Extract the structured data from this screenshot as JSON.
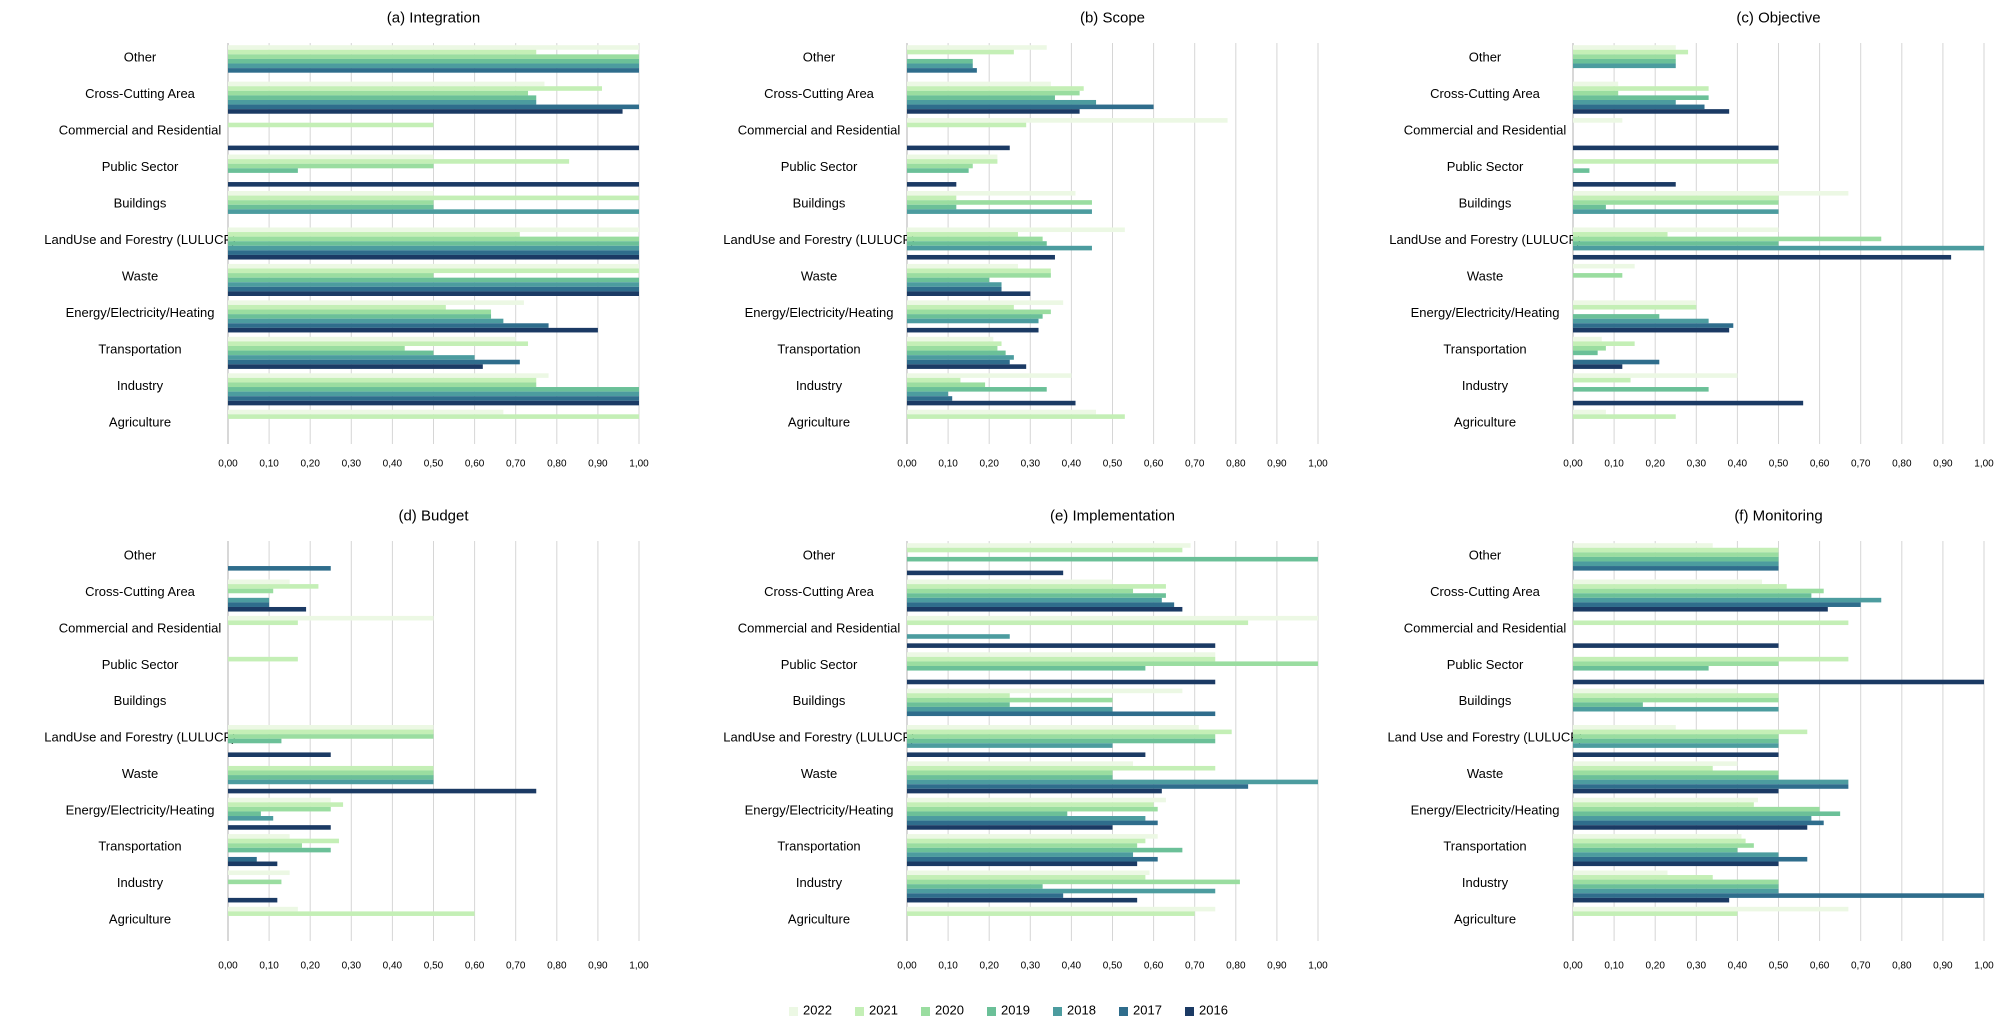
{
  "colors": {
    "series": [
      "#ecf8e4",
      "#c4efb6",
      "#9adda0",
      "#6bc098",
      "#4c9c9f",
      "#2f6d8c",
      "#1b3a64"
    ],
    "grid": "#d6d6d6",
    "axis": "#bfbfbf",
    "text": "#000000"
  },
  "legend": {
    "position": "bottom",
    "entries": [
      "2022",
      "2021",
      "2020",
      "2019",
      "2018",
      "2017",
      "2016"
    ]
  },
  "chart_data": [
    {
      "type": "bar",
      "orientation": "horizontal",
      "title": "(a) Integration",
      "categories": [
        "Other",
        "Cross-Cutting Area",
        "Commercial and Residential",
        "Public Sector",
        "Buildings",
        "LandUse and Forestry (LULUCF)",
        "Waste",
        "Energy/Electricity/Heating",
        "Transportation",
        "Industry",
        "Agriculture"
      ],
      "series": [
        {
          "name": "2022",
          "values": [
            1.0,
            0.77,
            0.0,
            0.5,
            0.5,
            1.0,
            1.0,
            0.72,
            0.7,
            0.78,
            0.67
          ]
        },
        {
          "name": "2021",
          "values": [
            0.75,
            0.91,
            0.5,
            0.83,
            1.0,
            0.71,
            1.0,
            0.53,
            0.73,
            0.75,
            1.0
          ]
        },
        {
          "name": "2020",
          "values": [
            1.0,
            0.73,
            0.0,
            0.5,
            0.5,
            1.0,
            0.5,
            0.64,
            0.43,
            0.75,
            0.0
          ]
        },
        {
          "name": "2019",
          "values": [
            1.0,
            0.75,
            0.0,
            0.17,
            0.5,
            1.0,
            1.0,
            0.64,
            0.5,
            1.0,
            0.0
          ]
        },
        {
          "name": "2018",
          "values": [
            1.0,
            0.75,
            0.0,
            0.0,
            1.0,
            1.0,
            1.0,
            0.67,
            0.6,
            1.0,
            0.0
          ]
        },
        {
          "name": "2017",
          "values": [
            1.0,
            1.0,
            0.0,
            0.0,
            0.0,
            1.0,
            1.0,
            0.78,
            0.71,
            1.0,
            0.0
          ]
        },
        {
          "name": "2016",
          "values": [
            0.0,
            0.96,
            1.0,
            1.0,
            0.0,
            1.0,
            1.0,
            0.9,
            0.62,
            1.0,
            0.0
          ]
        }
      ],
      "xlim": [
        0,
        1
      ],
      "xticks": [
        "0,00",
        "0,10",
        "0,20",
        "0,30",
        "0,40",
        "0,50",
        "0,60",
        "0,70",
        "0,80",
        "0,90",
        "1,00"
      ]
    },
    {
      "type": "bar",
      "orientation": "horizontal",
      "title": "(b) Scope",
      "categories": [
        "Other",
        "Cross-Cutting Area",
        "Commercial and Residential",
        "Public Sector",
        "Buildings",
        "LandUse and Forestry (LULUCF)",
        "Waste",
        "Energy/Electricity/Heating",
        "Transportation",
        "Industry",
        "Agriculture"
      ],
      "series": [
        {
          "name": "2022",
          "values": [
            0.34,
            0.35,
            0.78,
            0.22,
            0.41,
            0.53,
            0.27,
            0.38,
            0.21,
            0.4,
            0.46
          ]
        },
        {
          "name": "2021",
          "values": [
            0.26,
            0.43,
            0.29,
            0.22,
            0.12,
            0.27,
            0.35,
            0.26,
            0.23,
            0.13,
            0.53
          ]
        },
        {
          "name": "2020",
          "values": [
            0.0,
            0.42,
            0.0,
            0.16,
            0.45,
            0.33,
            0.35,
            0.35,
            0.22,
            0.19,
            0.0
          ]
        },
        {
          "name": "2019",
          "values": [
            0.16,
            0.36,
            0.0,
            0.15,
            0.12,
            0.34,
            0.2,
            0.33,
            0.24,
            0.34,
            0.0
          ]
        },
        {
          "name": "2018",
          "values": [
            0.16,
            0.46,
            0.0,
            0.0,
            0.45,
            0.45,
            0.23,
            0.32,
            0.26,
            0.1,
            0.0
          ]
        },
        {
          "name": "2017",
          "values": [
            0.17,
            0.6,
            0.0,
            0.0,
            0.0,
            0.0,
            0.23,
            0.0,
            0.25,
            0.11,
            0.0
          ]
        },
        {
          "name": "2016",
          "values": [
            0.0,
            0.42,
            0.25,
            0.12,
            0.0,
            0.36,
            0.3,
            0.32,
            0.29,
            0.41,
            0.0
          ]
        }
      ],
      "xlim": [
        0,
        1
      ],
      "xticks": [
        "0,00",
        "0,10",
        "0,20",
        "0,30",
        "0,40",
        "0,50",
        "0,60",
        "0,70",
        "0,80",
        "0,90",
        "1,00"
      ]
    },
    {
      "type": "bar",
      "orientation": "horizontal",
      "title": "(c) Objective",
      "categories": [
        "Other",
        "Cross-Cutting Area",
        "Commercial and Residential",
        "Public Sector",
        "Buildings",
        "LandUse and Forestry (LULUCF)",
        "Waste",
        "Energy/Electricity/Heating",
        "Transportation",
        "Industry",
        "Agriculture"
      ],
      "series": [
        {
          "name": "2022",
          "values": [
            0.25,
            0.11,
            0.12,
            0.0,
            0.67,
            0.5,
            0.15,
            0.3,
            0.07,
            0.4,
            0.08
          ]
        },
        {
          "name": "2021",
          "values": [
            0.28,
            0.33,
            0.0,
            0.5,
            0.5,
            0.23,
            0.0,
            0.3,
            0.15,
            0.14,
            0.25
          ]
        },
        {
          "name": "2020",
          "values": [
            0.25,
            0.11,
            0.0,
            0.0,
            0.5,
            0.75,
            0.12,
            0.0,
            0.08,
            0.0,
            0.0
          ]
        },
        {
          "name": "2019",
          "values": [
            0.25,
            0.33,
            0.0,
            0.04,
            0.08,
            0.5,
            0.0,
            0.21,
            0.06,
            0.33,
            0.0
          ]
        },
        {
          "name": "2018",
          "values": [
            0.25,
            0.25,
            0.0,
            0.0,
            0.5,
            1.0,
            0.0,
            0.33,
            0.0,
            0.0,
            0.0
          ]
        },
        {
          "name": "2017",
          "values": [
            0.0,
            0.32,
            0.0,
            0.0,
            0.0,
            0.0,
            0.0,
            0.39,
            0.21,
            0.0,
            0.0
          ]
        },
        {
          "name": "2016",
          "values": [
            0.0,
            0.38,
            0.5,
            0.25,
            0.0,
            0.92,
            0.0,
            0.38,
            0.12,
            0.56,
            0.0
          ]
        }
      ],
      "xlim": [
        0,
        1
      ],
      "xticks": [
        "0,00",
        "0,10",
        "0,20",
        "0,30",
        "0,40",
        "0,50",
        "0,60",
        "0,70",
        "0,80",
        "0,90",
        "1,00"
      ]
    },
    {
      "type": "bar",
      "orientation": "horizontal",
      "title": "(d) Budget",
      "categories": [
        "Other",
        "Cross-Cutting Area",
        "Commercial and Residential",
        "Public Sector",
        "Buildings",
        "LandUse and Forestry (LULUCF)",
        "Waste",
        "Energy/Electricity/Heating",
        "Transportation",
        "Industry",
        "Agriculture"
      ],
      "series": [
        {
          "name": "2022",
          "values": [
            0.0,
            0.15,
            0.5,
            0.0,
            0.0,
            0.5,
            0.0,
            0.25,
            0.15,
            0.15,
            0.17
          ]
        },
        {
          "name": "2021",
          "values": [
            0.0,
            0.22,
            0.17,
            0.17,
            0.0,
            0.5,
            0.5,
            0.28,
            0.27,
            0.0,
            0.6
          ]
        },
        {
          "name": "2020",
          "values": [
            0.0,
            0.11,
            0.0,
            0.0,
            0.0,
            0.5,
            0.5,
            0.25,
            0.18,
            0.13,
            0.0
          ]
        },
        {
          "name": "2019",
          "values": [
            0.0,
            0.0,
            0.0,
            0.0,
            0.0,
            0.13,
            0.5,
            0.08,
            0.25,
            0.0,
            0.0
          ]
        },
        {
          "name": "2018",
          "values": [
            0.0,
            0.1,
            0.0,
            0.0,
            0.0,
            0.0,
            0.5,
            0.11,
            0.0,
            0.0,
            0.0
          ]
        },
        {
          "name": "2017",
          "values": [
            0.25,
            0.1,
            0.0,
            0.0,
            0.0,
            0.0,
            0.0,
            0.0,
            0.07,
            0.0,
            0.0
          ]
        },
        {
          "name": "2016",
          "values": [
            0.0,
            0.19,
            0.0,
            0.0,
            0.0,
            0.25,
            0.75,
            0.25,
            0.12,
            0.12,
            0.0
          ]
        }
      ],
      "xlim": [
        0,
        1
      ],
      "xticks": [
        "0,00",
        "0,10",
        "0,20",
        "0,30",
        "0,40",
        "0,50",
        "0,60",
        "0,70",
        "0,80",
        "0,90",
        "1,00"
      ]
    },
    {
      "type": "bar",
      "orientation": "horizontal",
      "title": "(e) Implementation",
      "categories": [
        "Other",
        "Cross-Cutting Area",
        "Commercial and Residential",
        "Public Sector",
        "Buildings",
        "LandUse and Forestry (LULUCF)",
        "Waste",
        "Energy/Electricity/Heating",
        "Transportation",
        "Industry",
        "Agriculture"
      ],
      "series": [
        {
          "name": "2022",
          "values": [
            0.69,
            0.5,
            1.0,
            0.75,
            0.67,
            0.71,
            0.55,
            0.63,
            0.61,
            0.59,
            0.75
          ]
        },
        {
          "name": "2021",
          "values": [
            0.67,
            0.63,
            0.83,
            0.75,
            0.25,
            0.79,
            0.75,
            0.6,
            0.58,
            0.58,
            0.7
          ]
        },
        {
          "name": "2020",
          "values": [
            0.0,
            0.55,
            0.0,
            1.0,
            0.5,
            0.75,
            0.5,
            0.61,
            0.56,
            0.81,
            0.0
          ]
        },
        {
          "name": "2019",
          "values": [
            1.0,
            0.63,
            0.0,
            0.58,
            0.25,
            0.75,
            0.5,
            0.39,
            0.67,
            0.33,
            0.0
          ]
        },
        {
          "name": "2018",
          "values": [
            0.0,
            0.62,
            0.25,
            0.0,
            0.5,
            0.5,
            1.0,
            0.58,
            0.55,
            0.75,
            0.0
          ]
        },
        {
          "name": "2017",
          "values": [
            0.0,
            0.65,
            0.0,
            0.0,
            0.75,
            0.0,
            0.83,
            0.61,
            0.61,
            0.38,
            0.0
          ]
        },
        {
          "name": "2016",
          "values": [
            0.38,
            0.67,
            0.75,
            0.75,
            0.0,
            0.58,
            0.62,
            0.5,
            0.56,
            0.56,
            0.0
          ]
        }
      ],
      "xlim": [
        0,
        1
      ],
      "xticks": [
        "0,00",
        "0,10",
        "0,20",
        "0,30",
        "0,40",
        "0,50",
        "0,60",
        "0,70",
        "0,80",
        "0,90",
        "1,00"
      ]
    },
    {
      "type": "bar",
      "orientation": "horizontal",
      "title": "(f) Monitoring",
      "categories": [
        "Other",
        "Cross-Cutting Area",
        "Commercial and Residential",
        "Public Sector",
        "Buildings",
        "Land Use and Forestry (LULUCF)",
        "Waste",
        "Energy/Electricity/Heating",
        "Transportation",
        "Industry",
        "Agriculture"
      ],
      "series": [
        {
          "name": "2022",
          "values": [
            0.34,
            0.46,
            0.0,
            0.0,
            0.4,
            0.25,
            0.4,
            0.45,
            0.41,
            0.23,
            0.67
          ]
        },
        {
          "name": "2021",
          "values": [
            0.5,
            0.52,
            0.67,
            0.67,
            0.5,
            0.57,
            0.34,
            0.44,
            0.42,
            0.34,
            0.4
          ]
        },
        {
          "name": "2020",
          "values": [
            0.5,
            0.61,
            0.0,
            0.5,
            0.5,
            0.5,
            0.5,
            0.6,
            0.44,
            0.5,
            0.0
          ]
        },
        {
          "name": "2019",
          "values": [
            0.5,
            0.58,
            0.0,
            0.33,
            0.17,
            0.5,
            0.5,
            0.65,
            0.4,
            0.5,
            0.0
          ]
        },
        {
          "name": "2018",
          "values": [
            0.5,
            0.75,
            0.0,
            0.0,
            0.5,
            0.5,
            0.67,
            0.58,
            0.5,
            0.5,
            0.0
          ]
        },
        {
          "name": "2017",
          "values": [
            0.5,
            0.7,
            0.0,
            0.0,
            0.0,
            0.0,
            0.67,
            0.61,
            0.57,
            1.0,
            0.0
          ]
        },
        {
          "name": "2016",
          "values": [
            0.0,
            0.62,
            0.5,
            1.0,
            0.0,
            0.5,
            0.5,
            0.57,
            0.5,
            0.38,
            0.0
          ]
        }
      ],
      "xlim": [
        0,
        1
      ],
      "xticks": [
        "0,00",
        "0,10",
        "0,20",
        "0,30",
        "0,40",
        "0,50",
        "0,60",
        "0,70",
        "0,80",
        "0,90",
        "1,00"
      ]
    }
  ]
}
